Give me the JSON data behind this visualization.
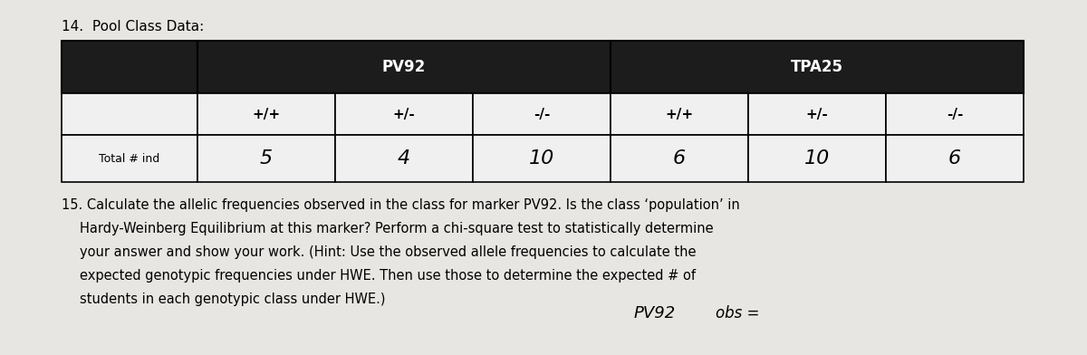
{
  "title": "14.  Pool Class Data:",
  "table_header_color": "#1c1c1c",
  "table_header_text_color": "#ffffff",
  "table_cell_color": "#f0f0f0",
  "table_alt_cell_color": "#dcdcdc",
  "bg_color": "#c8c5c0",
  "page_color": "#e8e6e2",
  "pv92_label": "PV92",
  "tpa25_label": "TPA25",
  "col_headers": [
    "+/+",
    "+/-",
    "-/-",
    "+/+",
    "+/-",
    "-/-"
  ],
  "row_label": "Total # ind",
  "row_values": [
    "5",
    "4",
    "10",
    "6",
    "10",
    "6"
  ],
  "q15_prefix": "15.",
  "question_text_line1": " Calculate the allelic frequencies observed in the class for marker PV92. Is the class ‘population’ in",
  "question_text_line2": "Hardy-Weinberg Equilibrium at this marker? Perform a chi-square test to statistically determine",
  "question_text_line3": "your answer and show your work. (Hint: Use the observed allele frequencies to calculate the",
  "question_text_line4": "expected genotypic frequencies under HWE. Then use those to determine the expected # of",
  "question_text_line5": "students in each genotypic class under HWE.)",
  "bottom_label": "PV92",
  "bottom_suffix": "obs =",
  "title_fontsize": 11,
  "header_fontsize": 11,
  "cell_fontsize": 16,
  "question_fontsize": 10.5,
  "row_label_fontsize": 9
}
